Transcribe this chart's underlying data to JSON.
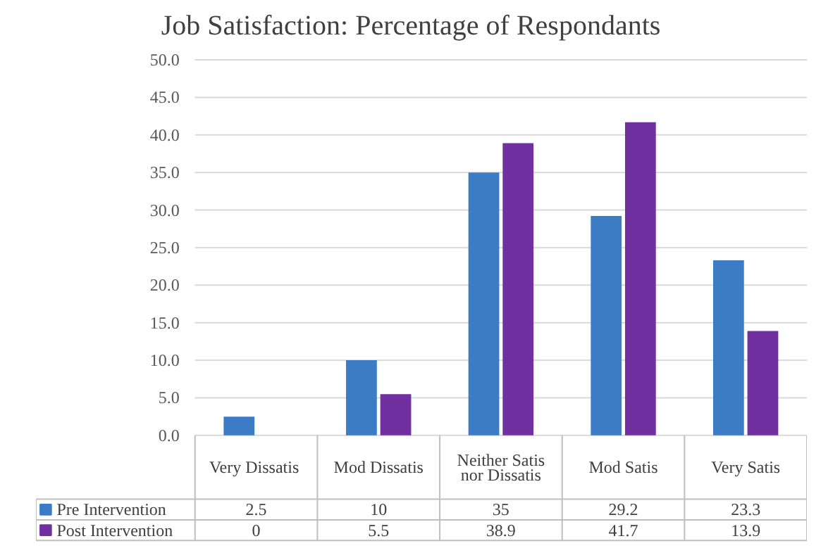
{
  "chart_data": {
    "type": "bar",
    "title": "Job Satisfaction:  Percentage  of  Respondants",
    "categories": [
      "Very  Dissatis",
      "Mod Dissatis",
      "Neither Satis nor Dissatis",
      "Mod Satis",
      "Very Satis"
    ],
    "series": [
      {
        "name": "Pre Intervention",
        "color": "#3c7cc4",
        "values": [
          2.5,
          10,
          35,
          29.2,
          23.3
        ]
      },
      {
        "name": "Post Intervention",
        "color": "#7030a0",
        "values": [
          0,
          5.5,
          38.9,
          41.7,
          13.9
        ]
      }
    ],
    "ylim": [
      0,
      50
    ],
    "yticks": [
      {
        "value": 0,
        "label": "0.0"
      },
      {
        "value": 5,
        "label": "5.0"
      },
      {
        "value": 10,
        "label": "10.0"
      },
      {
        "value": 15,
        "label": "15.0"
      },
      {
        "value": 20,
        "label": "20.0"
      },
      {
        "value": 25,
        "label": "25.0"
      },
      {
        "value": 30,
        "label": "30.0"
      },
      {
        "value": 35,
        "label": "35.0"
      },
      {
        "value": 40,
        "label": "40.0"
      },
      {
        "value": 45,
        "label": "45.0"
      },
      {
        "value": 50,
        "label": "50.0"
      }
    ],
    "grid": "y",
    "legend": "bottom",
    "data_labels": true
  }
}
